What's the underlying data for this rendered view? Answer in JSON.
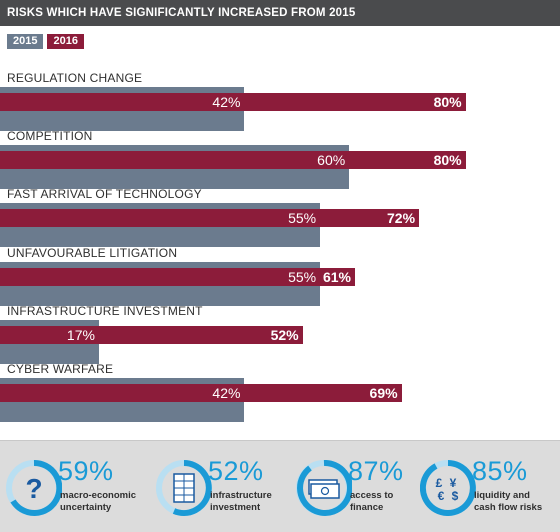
{
  "header": {
    "title": "RISKS WHICH HAVE SIGNIFICANTLY INCREASED FROM 2015"
  },
  "legend": {
    "year_a": "2015",
    "year_b": "2016"
  },
  "chart_data": {
    "type": "bar",
    "orientation": "horizontal",
    "categories": [
      "REGULATION CHANGE",
      "COMPETITION",
      "FAST ARRIVAL OF TECHNOLOGY",
      "UNFAVOURABLE LITIGATION",
      "INFRASTRUCTURE INVESTMENT",
      "CYBER WARFARE"
    ],
    "series": [
      {
        "name": "2015",
        "values": [
          42,
          60,
          55,
          55,
          17,
          42
        ],
        "color": "#6b7b8e"
      },
      {
        "name": "2016",
        "values": [
          80,
          80,
          72,
          61,
          52,
          69
        ],
        "color": "#8c1c3a"
      }
    ],
    "labels_2015": [
      "42%",
      "60%",
      "55%",
      "55%",
      "17%",
      "42%"
    ],
    "labels_2016": [
      "80%",
      "80%",
      "72%",
      "61%",
      "52%",
      "69%"
    ]
  },
  "stats": [
    {
      "percent": "59%",
      "caption_line1": "macro-economic",
      "caption_line2": "uncertainty",
      "icon": "question-mark-icon"
    },
    {
      "percent": "52%",
      "caption_line1": "infrastructure",
      "caption_line2": "investment",
      "icon": "building-icon"
    },
    {
      "percent": "87%",
      "caption_line1": "access to",
      "caption_line2": "finance",
      "icon": "banknotes-icon"
    },
    {
      "percent": "85%",
      "caption_line1": "liquidity and",
      "caption_line2": "cash flow risks",
      "icon": "currency-symbols-icon"
    }
  ],
  "colors": {
    "accent": "#1a9ad6",
    "bar_2015": "#6b7b8e",
    "bar_2016": "#8c1c3a",
    "header": "#4a4b4d"
  }
}
